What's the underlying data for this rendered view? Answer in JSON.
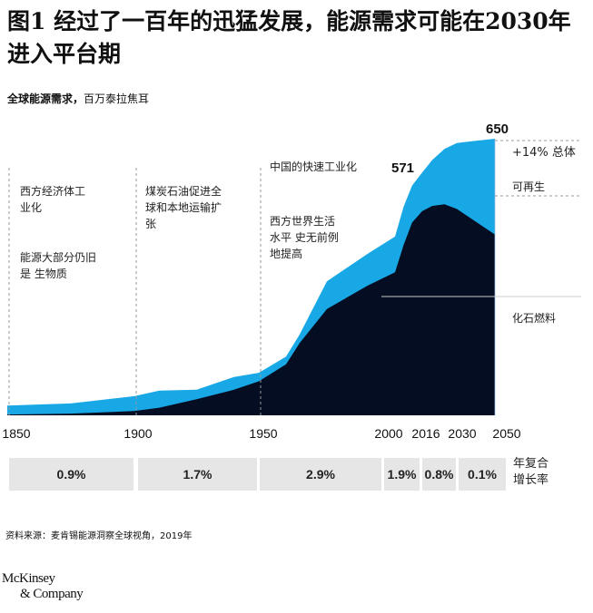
{
  "title": "图1 经过了一百年的迅猛发展，能源需求可能在2030年进入平台期",
  "subtitle_bold": "全球能源需求，",
  "subtitle_rest": "百万泰拉焦耳",
  "chart_data": {
    "type": "area",
    "title": "全球能源需求，百万泰拉焦耳",
    "x_tick_labels": [
      "1850",
      "1900",
      "1950",
      "2000",
      "2016",
      "2030",
      "2050"
    ],
    "x": [
      1850,
      1875,
      1900,
      1910,
      1925,
      1940,
      1950,
      1960,
      1965,
      1975,
      1990,
      2000,
      2005,
      2010,
      2016,
      2020,
      2025,
      2030,
      2040,
      2050
    ],
    "series": [
      {
        "name": "化石燃料",
        "color": "#050d22",
        "values": [
          2,
          4,
          10,
          18,
          38,
          60,
          80,
          120,
          170,
          250,
          305,
          336,
          400,
          453,
          480,
          492,
          496,
          485,
          455,
          425
        ]
      },
      {
        "name": "可再生",
        "color": "#19a8e6",
        "values": [
          21,
          24,
          35,
          40,
          22,
          30,
          20,
          18,
          20,
          65,
          75,
          84,
          90,
          87,
          91,
          108,
          130,
          155,
          190,
          225
        ]
      }
    ],
    "totals_labels": [
      {
        "x": 2016,
        "label": "571"
      },
      {
        "x": 2050,
        "label": "650"
      }
    ],
    "ylim": [
      0,
      650
    ],
    "legend": {
      "total": "+14% 总体",
      "renewable": "可再生",
      "fossil": "化石燃料"
    },
    "annotations": [
      {
        "lines": [
          "西方经济体工",
          "业化"
        ]
      },
      {
        "lines": [
          "能源大部分仍旧",
          "是 生物质"
        ]
      },
      {
        "lines": [
          "煤炭石油促进全",
          "球和本地运输扩",
          "张"
        ]
      },
      {
        "lines": [
          "中国的快速工业化"
        ]
      },
      {
        "lines": [
          "西方世界生活",
          "水平 史无前例",
          "地提高"
        ]
      }
    ],
    "cagr": {
      "label_lines": [
        "年复合",
        "增长率"
      ],
      "values": [
        "0.9%",
        "1.7%",
        "2.9%",
        "1.9%",
        "0.8%",
        "0.1%"
      ]
    }
  },
  "source": "资料来源：麦肯锡能源洞察全球视角，2019年",
  "logo": [
    "McKinsey",
    "& Company"
  ]
}
